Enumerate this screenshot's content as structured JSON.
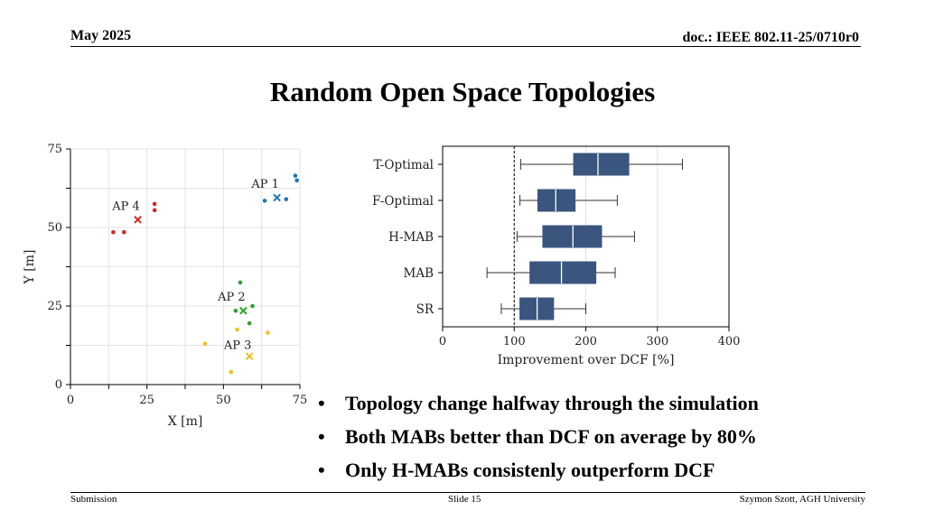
{
  "header": {
    "date": "May 2025",
    "doc": "doc.: IEEE 802.11-25/0710r0"
  },
  "title": "Random Open Space Topologies",
  "bullets": [
    "Topology change halfway through the simulation",
    "Both MABs better than DCF on average by 80%",
    "Only H-MABs consistenly outperform DCF"
  ],
  "bullet_marker": "•",
  "footer": {
    "left": "Submission",
    "center": "Slide 15",
    "right": "Szymon Szott, AGH University"
  },
  "chart_data": [
    {
      "type": "scatter",
      "xlabel": "X [m]",
      "ylabel": "Y [m]",
      "xlim": [
        0,
        75
      ],
      "ylim": [
        0,
        75
      ],
      "x_ticks": [
        0,
        25,
        50,
        75
      ],
      "y_ticks": [
        0,
        25,
        50,
        75
      ],
      "grid": true,
      "series": [
        {
          "name": "AP 1",
          "color": "#1f77b4",
          "ap": {
            "x": 67.5,
            "y": 59.5
          },
          "stations": [
            {
              "x": 63.5,
              "y": 58.5
            },
            {
              "x": 70.5,
              "y": 59
            },
            {
              "x": 73.5,
              "y": 66.5
            },
            {
              "x": 74,
              "y": 65
            }
          ]
        },
        {
          "name": "AP 2",
          "color": "#2ca02c",
          "ap": {
            "x": 56.5,
            "y": 23.5
          },
          "stations": [
            {
              "x": 55.5,
              "y": 32.5
            },
            {
              "x": 54,
              "y": 23.5
            },
            {
              "x": 59.5,
              "y": 25
            },
            {
              "x": 58.5,
              "y": 19.5
            }
          ]
        },
        {
          "name": "AP 3",
          "color": "#f0c020",
          "ap": {
            "x": 58.5,
            "y": 9
          },
          "stations": [
            {
              "x": 44,
              "y": 13
            },
            {
              "x": 54.5,
              "y": 17.5
            },
            {
              "x": 64.5,
              "y": 16.5
            },
            {
              "x": 52.5,
              "y": 4
            }
          ]
        },
        {
          "name": "AP 4",
          "color": "#d62728",
          "ap": {
            "x": 22,
            "y": 52.5
          },
          "stations": [
            {
              "x": 27.5,
              "y": 57.5
            },
            {
              "x": 27.5,
              "y": 55.5
            },
            {
              "x": 14,
              "y": 48.5
            },
            {
              "x": 17.5,
              "y": 48.5
            }
          ]
        }
      ]
    },
    {
      "type": "box",
      "xlabel": "Improvement over DCF [%]",
      "xlim": [
        0,
        400
      ],
      "x_ticks": [
        0,
        100,
        200,
        300,
        400
      ],
      "reference_line": 100,
      "grid": true,
      "color": "#3a557e",
      "categories": [
        "T-Optimal",
        "F-Optimal",
        "H-MAB",
        "MAB",
        "SR"
      ],
      "boxes": [
        {
          "whislo": 109,
          "q1": 183,
          "med": 217,
          "q3": 260,
          "whishi": 335
        },
        {
          "whislo": 108,
          "q1": 133,
          "med": 158,
          "q3": 185,
          "whishi": 244
        },
        {
          "whislo": 104,
          "q1": 140,
          "med": 182,
          "q3": 222,
          "whishi": 268
        },
        {
          "whislo": 62,
          "q1": 122,
          "med": 166,
          "q3": 214,
          "whishi": 241
        },
        {
          "whislo": 82,
          "q1": 108,
          "med": 132,
          "q3": 155,
          "whishi": 200
        }
      ]
    }
  ]
}
